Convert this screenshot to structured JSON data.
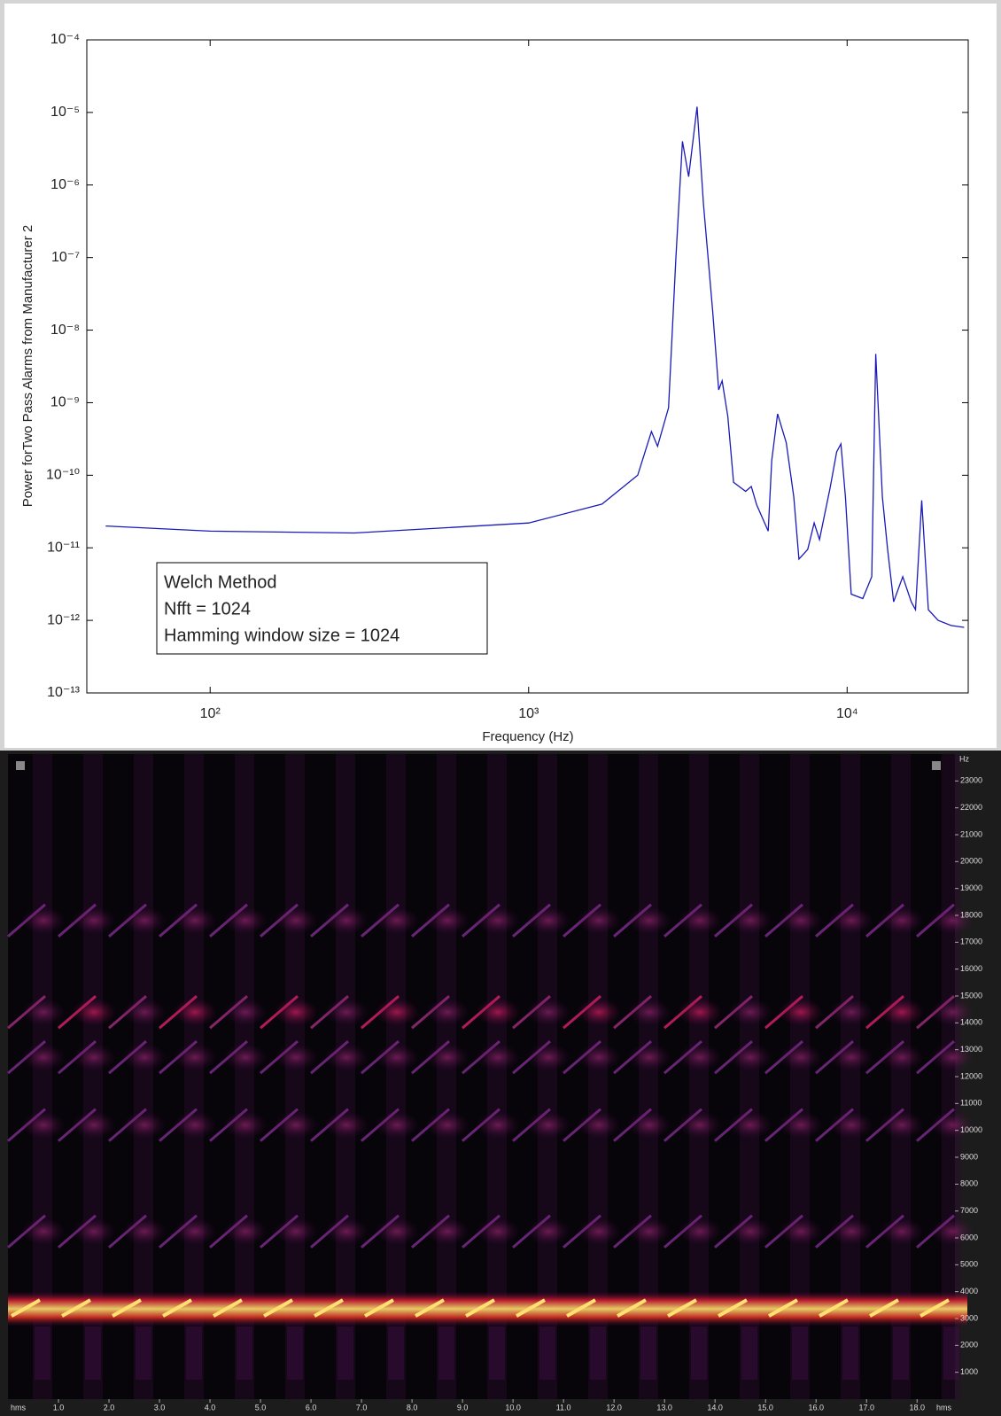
{
  "chart_data": [
    {
      "type": "line",
      "log_x": true,
      "log_y": true,
      "color": "#1a1ab8",
      "y_label": "Power forTwo Pass Alarms from Manufacturer 2",
      "x_label": "Frequency (Hz)",
      "annotations": [
        "Welch Method",
        "Nfft = 1024",
        "Hamming window size = 1024"
      ],
      "xlim": [
        41,
        24000
      ],
      "xticks": [
        {
          "value": 100,
          "label": "10²"
        },
        {
          "value": 1000,
          "label": "10³"
        },
        {
          "value": 10000,
          "label": "10⁴"
        }
      ],
      "ylim": [
        1e-13,
        0.0001
      ],
      "yticks": [
        {
          "value": 1e-13,
          "label": "10⁻¹³"
        },
        {
          "value": 1e-12,
          "label": "10⁻¹²"
        },
        {
          "value": 1e-11,
          "label": "10⁻¹¹"
        },
        {
          "value": 1e-10,
          "label": "10⁻¹⁰"
        },
        {
          "value": 1e-09,
          "label": "10⁻⁹"
        },
        {
          "value": 1e-08,
          "label": "10⁻⁸"
        },
        {
          "value": 1e-07,
          "label": "10⁻⁷"
        },
        {
          "value": 1e-06,
          "label": "10⁻⁶"
        },
        {
          "value": 1e-05,
          "label": "10⁻⁵"
        },
        {
          "value": 0.0001,
          "label": "10⁻⁴"
        }
      ],
      "x": [
        47,
        100,
        283,
        1000,
        1700,
        2200,
        2430,
        2540,
        2750,
        2900,
        3040,
        3180,
        3380,
        3540,
        3780,
        3950,
        4050,
        4220,
        4400,
        4800,
        5000,
        5200,
        5650,
        5800,
        6050,
        6440,
        6800,
        7060,
        7520,
        7880,
        8190,
        8850,
        9270,
        9560,
        9880,
        10300,
        11200,
        11950,
        12300,
        12900,
        13400,
        14000,
        14950,
        15900,
        16400,
        17150,
        17990,
        19300,
        21200,
        23300
      ],
      "values": [
        2e-11,
        1.7e-11,
        1.6e-11,
        2.2e-11,
        4e-11,
        1e-10,
        4e-10,
        2.5e-10,
        8.5e-10,
        1e-07,
        4e-06,
        1.3e-06,
        1.2e-05,
        5.5e-07,
        1.9e-08,
        1.5e-09,
        2e-09,
        6.5e-10,
        8e-11,
        6e-11,
        7e-11,
        3.9e-11,
        1.7e-11,
        1.6e-10,
        7e-10,
        2.8e-10,
        5e-11,
        7e-12,
        9.5e-12,
        2.2e-11,
        1.3e-11,
        6.8e-11,
        2.1e-10,
        2.7e-10,
        5e-11,
        2.3e-12,
        2e-12,
        4e-12,
        4.7e-09,
        5e-11,
        9.5e-12,
        1.8e-12,
        4e-12,
        1.8e-12,
        1.4e-12,
        4.5e-11,
        1.4e-12,
        1e-12,
        8.5e-13,
        8e-13
      ]
    },
    {
      "type": "spectrogram",
      "y_unit": "Hz",
      "x_unit": "hms",
      "xlim": [
        0,
        18.75
      ],
      "xticks": [
        {
          "value": 1,
          "label": "1.0"
        },
        {
          "value": 2,
          "label": "2.0"
        },
        {
          "value": 3,
          "label": "3.0"
        },
        {
          "value": 4,
          "label": "4.0"
        },
        {
          "value": 5,
          "label": "5.0"
        },
        {
          "value": 6,
          "label": "6.0"
        },
        {
          "value": 7,
          "label": "7.0"
        },
        {
          "value": 8,
          "label": "8.0"
        },
        {
          "value": 9,
          "label": "9.0"
        },
        {
          "value": 10,
          "label": "10.0"
        },
        {
          "value": 11,
          "label": "11.0"
        },
        {
          "value": 12,
          "label": "12.0"
        },
        {
          "value": 13,
          "label": "13.0"
        },
        {
          "value": 14,
          "label": "14.0"
        },
        {
          "value": 15,
          "label": "15.0"
        },
        {
          "value": 16,
          "label": "16.0"
        },
        {
          "value": 17,
          "label": "17.0"
        },
        {
          "value": 18,
          "label": "18.0"
        }
      ],
      "ylim": [
        0,
        24000
      ],
      "yticks": [
        1000,
        2000,
        3000,
        4000,
        5000,
        6000,
        7000,
        8000,
        9000,
        10000,
        11000,
        12000,
        13000,
        14000,
        15000,
        16000,
        17000,
        18000,
        19000,
        20000,
        21000,
        22000,
        23000
      ]
    }
  ]
}
